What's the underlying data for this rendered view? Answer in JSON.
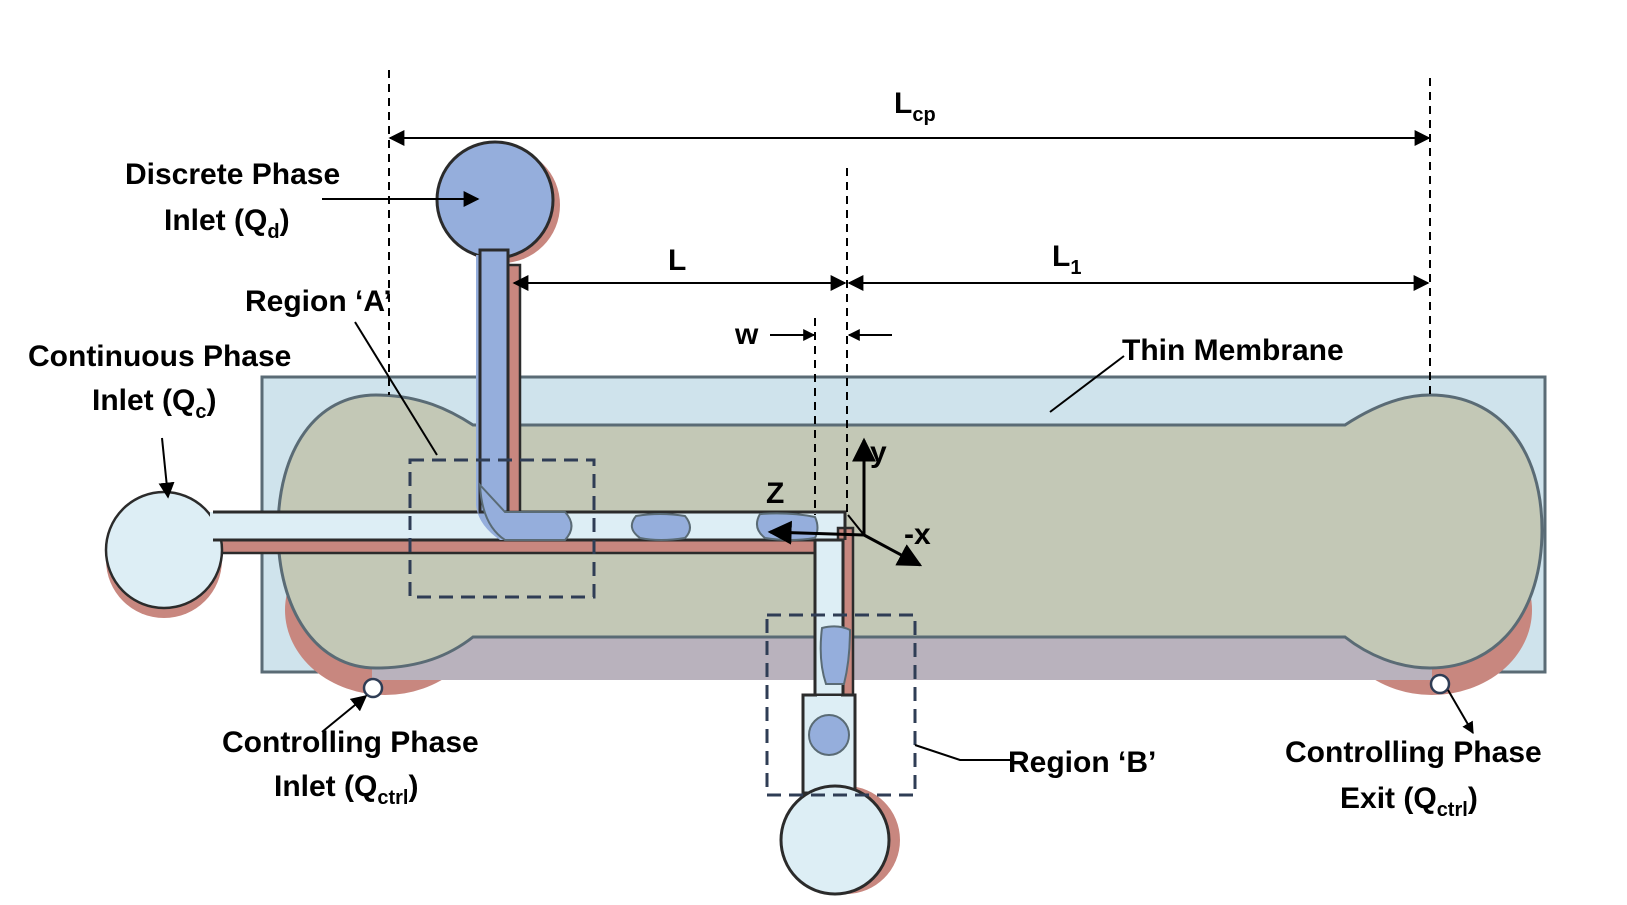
{
  "labels": {
    "discrete_inlet": {
      "line1": "Discrete Phase",
      "line2_main": "Inlet (Q",
      "line2_sub": "d",
      "line2_end": ")"
    },
    "region_a": "Region ‘A’",
    "continuous_inlet": {
      "line1": "Continuous Phase",
      "line2_main": "Inlet  (Q",
      "line2_sub": "c",
      "line2_end": ")"
    },
    "ctrl_inlet": {
      "line1": "Controlling Phase",
      "line2_main": "Inlet (Q",
      "line2_sub": "ctrl",
      "line2_end": ")"
    },
    "ctrl_exit": {
      "line1": "Controlling Phase",
      "line2_main": "Exit  (Q",
      "line2_sub": "ctrl",
      "line2_end": ")"
    },
    "thin_membrane": "Thin Membrane",
    "region_b": "Region ‘B’"
  },
  "dimensions": {
    "lcp_main": "L",
    "lcp_sub": "cp",
    "l": "L",
    "l1_main": "L",
    "l1_sub": "1",
    "w": "w"
  },
  "axes": {
    "y": "y",
    "minus_x": "-x",
    "z": "Z"
  },
  "colors": {
    "membrane": "#cfe3ec",
    "chamber": "#c3c8b6",
    "chamber_shadow": "#b9b2bd",
    "channel": "#ddeef5",
    "channel_edge": "#2b2b2b",
    "shadow": "#c8877f",
    "droplet": "#95aedc",
    "outline": "#5a6b75",
    "dashed_box": "#2f3d55"
  }
}
